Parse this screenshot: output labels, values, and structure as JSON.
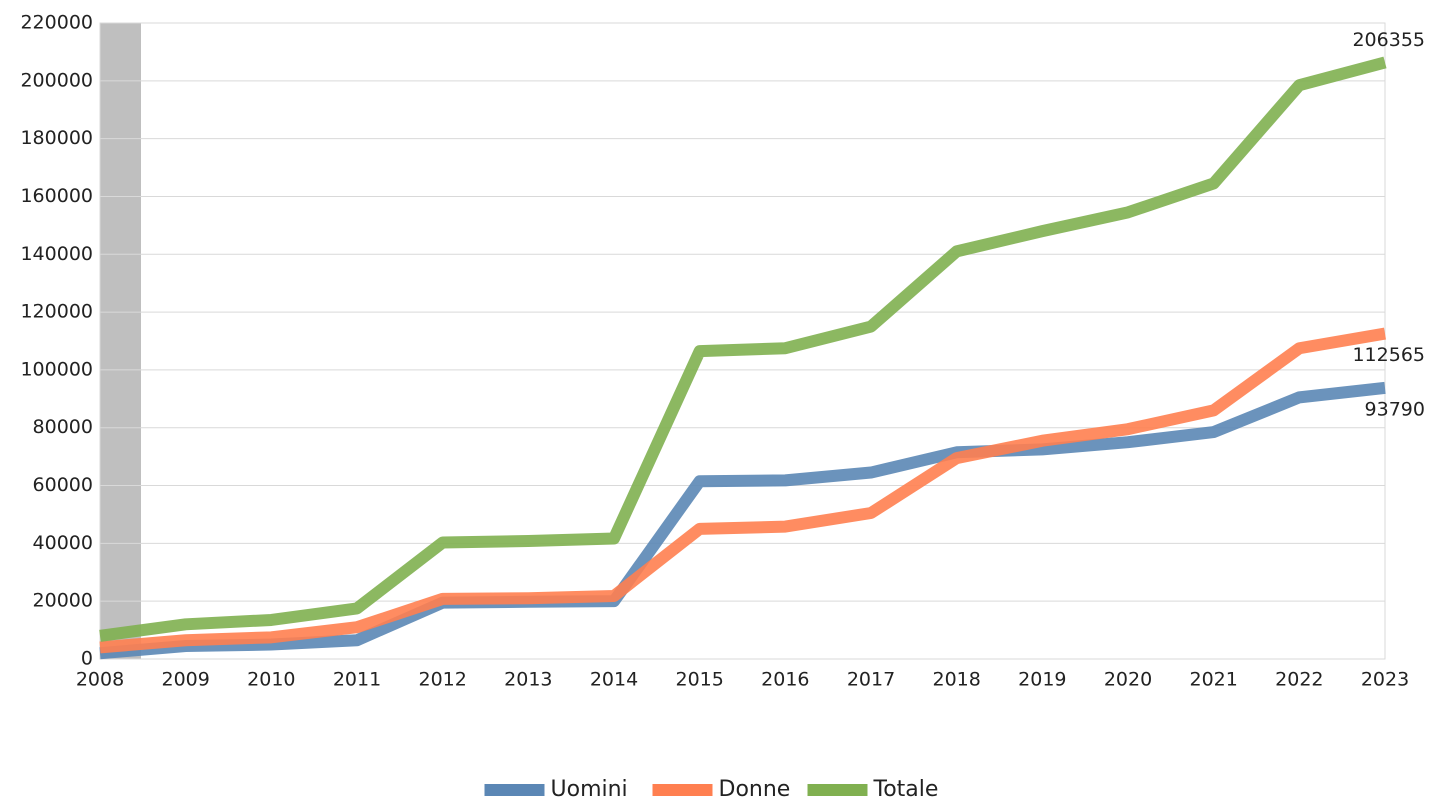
{
  "chart_data": {
    "type": "line",
    "categories": [
      "2008",
      "2009",
      "2010",
      "2011",
      "2012",
      "2013",
      "2014",
      "2015",
      "2016",
      "2017",
      "2018",
      "2019",
      "2020",
      "2021",
      "2022",
      "2023"
    ],
    "series": [
      {
        "name": "Uomini",
        "color": "#5b87b5",
        "values": [
          2000,
          4500,
          5000,
          6500,
          19500,
          19800,
          20000,
          61500,
          61800,
          64500,
          71500,
          72500,
          75000,
          78500,
          90500,
          93790
        ]
      },
      {
        "name": "Donne",
        "color": "#ff7f50",
        "values": [
          4000,
          6500,
          7500,
          11000,
          20800,
          21000,
          21800,
          45000,
          45800,
          50500,
          69500,
          75500,
          79500,
          86000,
          107500,
          112565
        ]
      },
      {
        "name": "Totale",
        "color": "#80b050",
        "values": [
          8000,
          12000,
          13500,
          17500,
          40300,
          40800,
          41700,
          106500,
          107500,
          115000,
          141000,
          148000,
          154500,
          164500,
          198500,
          206355
        ]
      }
    ],
    "ylim": [
      0,
      220000
    ],
    "yticks": [
      0,
      20000,
      40000,
      60000,
      80000,
      100000,
      120000,
      140000,
      160000,
      180000,
      200000,
      220000
    ],
    "grid": true,
    "legend": "bottom"
  }
}
